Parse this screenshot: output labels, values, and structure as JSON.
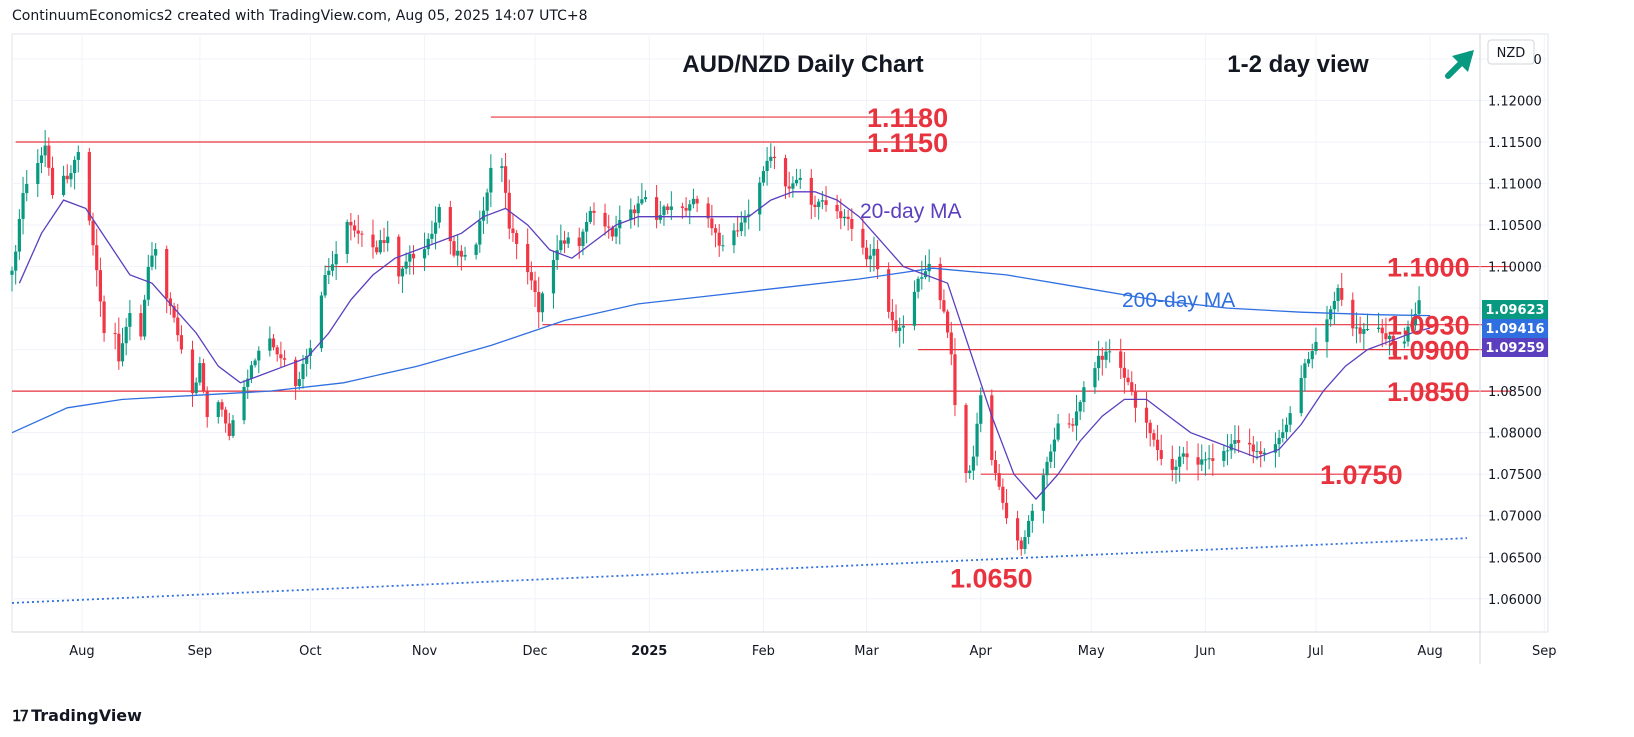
{
  "header": {
    "attribution": "ContinuumEconomics2 created with TradingView.com, Aug 05, 2025 14:07 UTC+8"
  },
  "footer": {
    "brand": "TradingView"
  },
  "chart_data": {
    "type": "candlestick",
    "title": "AUD/NZD Daily Chart",
    "view_label": "1-2 day view",
    "view_direction": "up-right-arrow",
    "currency_label": "NZD",
    "ylim": [
      1.056,
      1.128
    ],
    "y_ticks": [
      "1.06000",
      "1.06500",
      "1.07000",
      "1.07500",
      "1.08000",
      "1.08500",
      "1.09000",
      "1.09500",
      "1.10000",
      "1.10500",
      "1.11000",
      "1.11500",
      "1.12000",
      "1.12500"
    ],
    "x_range_days": [
      0,
      417
    ],
    "x_ticks": [
      {
        "label": "Aug",
        "day": 19
      },
      {
        "label": "Sep",
        "day": 51
      },
      {
        "label": "Oct",
        "day": 81
      },
      {
        "label": "Nov",
        "day": 112
      },
      {
        "label": "Dec",
        "day": 142
      },
      {
        "label": "2025",
        "day": 173
      },
      {
        "label": "Feb",
        "day": 204
      },
      {
        "label": "Mar",
        "day": 232
      },
      {
        "label": "Apr",
        "day": 263
      },
      {
        "label": "May",
        "day": 293
      },
      {
        "label": "Jun",
        "day": 324
      },
      {
        "label": "Jul",
        "day": 354
      },
      {
        "label": "Aug",
        "day": 385
      },
      {
        "label": "Sep",
        "day": 416
      }
    ],
    "price_badges": [
      {
        "value": "1.09623",
        "color": "#089981"
      },
      {
        "value": "1.09416",
        "color": "#2f6fe0"
      },
      {
        "value": "1.09259",
        "color": "#5b3fbf"
      }
    ],
    "levels": [
      {
        "label": "1.1180",
        "value": 1.118,
        "from_day": 130,
        "to_day": 248
      },
      {
        "label": "1.1150",
        "value": 1.115,
        "from_day": 1,
        "to_day": 248
      },
      {
        "label": "1.1000",
        "value": 1.1,
        "from_day": 85,
        "to_day": 407
      },
      {
        "label": "1.0930",
        "value": 1.093,
        "from_day": 144,
        "to_day": 407
      },
      {
        "label": "1.0900",
        "value": 1.09,
        "from_day": 246,
        "to_day": 407
      },
      {
        "label": "1.0850",
        "value": 1.085,
        "from_day": 0,
        "to_day": 407
      },
      {
        "label": "1.0750",
        "value": 1.075,
        "from_day": 263,
        "to_day": 376
      },
      {
        "label": "1.0650",
        "value": 1.065,
        "from_day": null,
        "to_day": null
      }
    ],
    "ma_labels": {
      "ma20": "20-day MA",
      "ma200": "200-day MA"
    },
    "colors": {
      "up": "#089981",
      "down": "#f23645",
      "ma20": "#5b3fbf",
      "ma200": "#2f6fe0",
      "level": "#e8333f",
      "trend": "#2f6fe0"
    },
    "trendline": {
      "from": [
        0,
        1.0595
      ],
      "to": [
        395,
        1.0673
      ]
    },
    "anchors": [
      [
        0,
        1.099
      ],
      [
        3,
        1.109
      ],
      [
        6,
        1.112
      ],
      [
        9,
        1.114
      ],
      [
        11,
        1.109
      ],
      [
        13,
        1.112
      ],
      [
        15,
        1.11
      ],
      [
        18,
        1.114
      ],
      [
        20,
        1.108
      ],
      [
        23,
        1.1
      ],
      [
        25,
        1.092
      ],
      [
        27,
        1.096
      ],
      [
        29,
        1.088
      ],
      [
        31,
        1.093
      ],
      [
        33,
        1.096
      ],
      [
        35,
        1.091
      ],
      [
        37,
        1.1
      ],
      [
        39,
        1.102
      ],
      [
        41,
        1.098
      ],
      [
        43,
        1.095
      ],
      [
        45,
        1.092
      ],
      [
        47,
        1.088
      ],
      [
        49,
        1.085
      ],
      [
        51,
        1.088
      ],
      [
        53,
        1.082
      ],
      [
        55,
        1.085
      ],
      [
        57,
        1.083
      ],
      [
        59,
        1.08
      ],
      [
        61,
        1.084
      ],
      [
        63,
        1.086
      ],
      [
        66,
        1.089
      ],
      [
        69,
        1.092
      ],
      [
        72,
        1.09
      ],
      [
        75,
        1.088
      ],
      [
        77,
        1.086
      ],
      [
        79,
        1.088
      ],
      [
        82,
        1.092
      ],
      [
        85,
        1.099
      ],
      [
        88,
        1.101
      ],
      [
        90,
        1.106
      ],
      [
        93,
        1.104
      ],
      [
        96,
        1.103
      ],
      [
        99,
        1.102
      ],
      [
        102,
        1.104
      ],
      [
        105,
        1.099
      ],
      [
        108,
        1.101
      ],
      [
        111,
        1.102
      ],
      [
        114,
        1.104
      ],
      [
        117,
        1.108
      ],
      [
        120,
        1.101
      ],
      [
        123,
        1.102
      ],
      [
        126,
        1.103
      ],
      [
        129,
        1.109
      ],
      [
        131,
        1.114
      ],
      [
        133,
        1.112
      ],
      [
        135,
        1.105
      ],
      [
        138,
        1.101
      ],
      [
        141,
        1.098
      ],
      [
        143,
        1.095
      ],
      [
        145,
        1.098
      ],
      [
        148,
        1.102
      ],
      [
        151,
        1.104
      ],
      [
        154,
        1.102
      ],
      [
        157,
        1.107
      ],
      [
        160,
        1.106
      ],
      [
        163,
        1.104
      ],
      [
        166,
        1.106
      ],
      [
        169,
        1.107
      ],
      [
        172,
        1.108
      ],
      [
        175,
        1.106
      ],
      [
        178,
        1.107
      ],
      [
        181,
        1.106
      ],
      [
        184,
        1.108
      ],
      [
        187,
        1.107
      ],
      [
        190,
        1.105
      ],
      [
        193,
        1.102
      ],
      [
        196,
        1.104
      ],
      [
        199,
        1.106
      ],
      [
        202,
        1.108
      ],
      [
        205,
        1.113
      ],
      [
        207,
        1.1125
      ],
      [
        209,
        1.111
      ],
      [
        211,
        1.109
      ],
      [
        214,
        1.111
      ],
      [
        217,
        1.107
      ],
      [
        220,
        1.108
      ],
      [
        223,
        1.107
      ],
      [
        226,
        1.106
      ],
      [
        229,
        1.104
      ],
      [
        232,
        1.101
      ],
      [
        234,
        1.102
      ],
      [
        237,
        1.096
      ],
      [
        240,
        1.092
      ],
      [
        243,
        1.094
      ],
      [
        246,
        1.098
      ],
      [
        249,
        1.1
      ],
      [
        251,
        1.099
      ],
      [
        253,
        1.094
      ],
      [
        255,
        1.089
      ],
      [
        257,
        1.078
      ],
      [
        259,
        1.075
      ],
      [
        261,
        1.077
      ],
      [
        263,
        1.084
      ],
      [
        265,
        1.079
      ],
      [
        267,
        1.075
      ],
      [
        270,
        1.07
      ],
      [
        272,
        1.068
      ],
      [
        274,
        1.066
      ],
      [
        276,
        1.069
      ],
      [
        279,
        1.074
      ],
      [
        282,
        1.078
      ],
      [
        285,
        1.082
      ],
      [
        288,
        1.081
      ],
      [
        291,
        1.085
      ],
      [
        294,
        1.088
      ],
      [
        297,
        1.09
      ],
      [
        300,
        1.088
      ],
      [
        303,
        1.086
      ],
      [
        306,
        1.082
      ],
      [
        309,
        1.08
      ],
      [
        312,
        1.077
      ],
      [
        315,
        1.076
      ],
      [
        318,
        1.077
      ],
      [
        321,
        1.076
      ],
      [
        324,
        1.077
      ],
      [
        327,
        1.076
      ],
      [
        330,
        1.078
      ],
      [
        333,
        1.079
      ],
      [
        336,
        1.078
      ],
      [
        339,
        1.077
      ],
      [
        342,
        1.078
      ],
      [
        345,
        1.08
      ],
      [
        348,
        1.084
      ],
      [
        351,
        1.088
      ],
      [
        354,
        1.091
      ],
      [
        357,
        1.094
      ],
      [
        360,
        1.097
      ],
      [
        362,
        1.095
      ],
      [
        364,
        1.093
      ],
      [
        367,
        1.092
      ],
      [
        370,
        1.0925
      ],
      [
        373,
        1.0915
      ],
      [
        376,
        1.0905
      ],
      [
        378,
        1.091
      ],
      [
        380,
        1.0935
      ],
      [
        382,
        1.0962
      ]
    ],
    "ma20_path": [
      [
        2,
        1.098
      ],
      [
        8,
        1.104
      ],
      [
        14,
        1.108
      ],
      [
        20,
        1.107
      ],
      [
        26,
        1.103
      ],
      [
        32,
        1.099
      ],
      [
        38,
        1.098
      ],
      [
        44,
        1.095
      ],
      [
        50,
        1.092
      ],
      [
        56,
        1.088
      ],
      [
        62,
        1.086
      ],
      [
        68,
        1.087
      ],
      [
        74,
        1.088
      ],
      [
        80,
        1.089
      ],
      [
        86,
        1.092
      ],
      [
        92,
        1.096
      ],
      [
        98,
        1.099
      ],
      [
        104,
        1.101
      ],
      [
        110,
        1.102
      ],
      [
        116,
        1.103
      ],
      [
        122,
        1.104
      ],
      [
        128,
        1.106
      ],
      [
        134,
        1.107
      ],
      [
        140,
        1.105
      ],
      [
        146,
        1.102
      ],
      [
        152,
        1.101
      ],
      [
        158,
        1.103
      ],
      [
        164,
        1.105
      ],
      [
        170,
        1.106
      ],
      [
        176,
        1.106
      ],
      [
        182,
        1.106
      ],
      [
        188,
        1.106
      ],
      [
        194,
        1.106
      ],
      [
        200,
        1.106
      ],
      [
        206,
        1.108
      ],
      [
        212,
        1.109
      ],
      [
        218,
        1.109
      ],
      [
        224,
        1.108
      ],
      [
        230,
        1.106
      ],
      [
        236,
        1.103
      ],
      [
        242,
        1.1
      ],
      [
        248,
        1.099
      ],
      [
        254,
        1.098
      ],
      [
        260,
        1.09
      ],
      [
        266,
        1.082
      ],
      [
        272,
        1.075
      ],
      [
        278,
        1.072
      ],
      [
        284,
        1.075
      ],
      [
        290,
        1.079
      ],
      [
        296,
        1.082
      ],
      [
        302,
        1.084
      ],
      [
        308,
        1.084
      ],
      [
        314,
        1.082
      ],
      [
        320,
        1.08
      ],
      [
        326,
        1.079
      ],
      [
        332,
        1.078
      ],
      [
        338,
        1.077
      ],
      [
        344,
        1.078
      ],
      [
        350,
        1.081
      ],
      [
        356,
        1.085
      ],
      [
        362,
        1.088
      ],
      [
        368,
        1.09
      ],
      [
        374,
        1.091
      ],
      [
        380,
        1.092
      ],
      [
        385,
        1.0926
      ]
    ],
    "ma200_path": [
      [
        0,
        1.08
      ],
      [
        15,
        1.083
      ],
      [
        30,
        1.084
      ],
      [
        50,
        1.0845
      ],
      [
        70,
        1.085
      ],
      [
        90,
        1.086
      ],
      [
        110,
        1.088
      ],
      [
        130,
        1.0905
      ],
      [
        150,
        1.0935
      ],
      [
        170,
        1.0955
      ],
      [
        190,
        1.0965
      ],
      [
        210,
        1.0975
      ],
      [
        230,
        1.0985
      ],
      [
        250,
        1.0998
      ],
      [
        270,
        1.099
      ],
      [
        290,
        1.0975
      ],
      [
        310,
        1.096
      ],
      [
        330,
        1.095
      ],
      [
        350,
        1.0945
      ],
      [
        370,
        1.0942
      ],
      [
        385,
        1.0941
      ]
    ]
  }
}
